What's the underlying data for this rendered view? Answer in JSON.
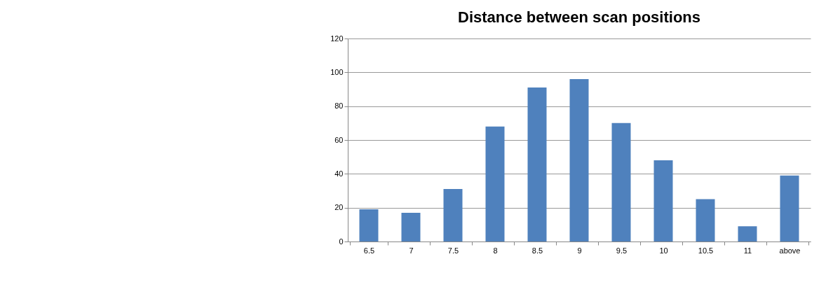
{
  "chart_data": {
    "type": "bar",
    "title": "Distance between scan positions",
    "categories": [
      "6.5",
      "7",
      "7.5",
      "8",
      "8.5",
      "9",
      "9.5",
      "10",
      "10.5",
      "11",
      "above"
    ],
    "values": [
      19,
      17,
      31,
      68,
      91,
      96,
      70,
      48,
      25,
      9,
      39
    ],
    "color": "#4f81bd",
    "ylim": [
      0,
      120
    ],
    "yticks": [
      0,
      20,
      40,
      60,
      80,
      100,
      120
    ],
    "grid": "y",
    "legend": false
  }
}
